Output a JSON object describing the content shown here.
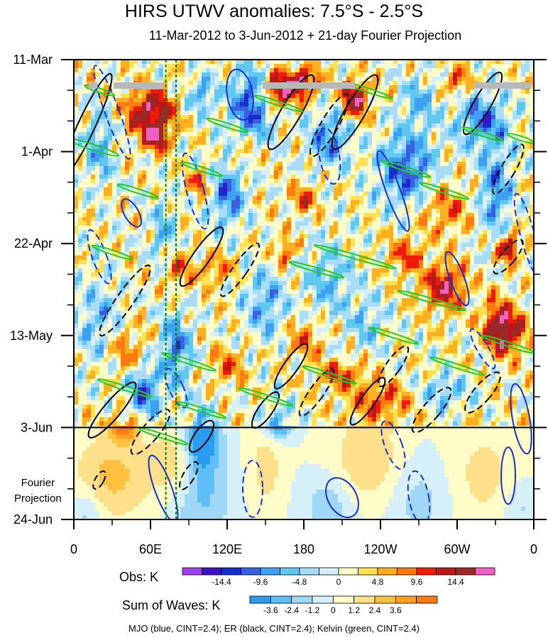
{
  "chart_data": {
    "type": "heatmap",
    "title": "HIRS UTWV anomalies: 7.5°S - 2.5°S",
    "subtitle": "11-Mar-2012 to 3-Jun-2012 + 21-day Fourier Projection",
    "x_tick_labels": [
      "0",
      "60E",
      "120E",
      "180",
      "120W",
      "60W",
      "0"
    ],
    "x_ticks_deg": [
      0,
      60,
      120,
      180,
      240,
      300,
      360
    ],
    "xlim_deg": [
      0,
      360
    ],
    "y_tick_labels": [
      "11-Mar",
      "1-Apr",
      "22-Apr",
      "13-May",
      "3-Jun",
      "24-Jun"
    ],
    "y_ticks_day": [
      0,
      21,
      42,
      63,
      84,
      105
    ],
    "ylim_day": [
      0,
      105
    ],
    "observation_end_day": 84,
    "projection_label": [
      "Fourier",
      "Projection"
    ],
    "reference_lines_deg": [
      72,
      80
    ],
    "obs_colorbar": {
      "title": "Obs: K",
      "tick_labels": [
        "-14.4",
        "-9.6",
        "-4.8",
        "0",
        "4.8",
        "9.6",
        "14.4"
      ],
      "colors": [
        "#9b3ff0",
        "#3a10c8",
        "#1530c8",
        "#3a60e0",
        "#3ea0f0",
        "#5ec8f0",
        "#a8dcf8",
        "#d6f0fa",
        "#fffcc8",
        "#ffe050",
        "#ffb020",
        "#ff7a10",
        "#f01a0a",
        "#b81818",
        "#9a2a2a",
        "#f060c0"
      ]
    },
    "waves_colorbar": {
      "title": "Sum of Waves: K",
      "tick_labels": [
        "-3.6",
        "-2.4",
        "-1.2",
        "0",
        "1.2",
        "2.4",
        "3.6"
      ],
      "colors": [
        "#2a9cf0",
        "#5ebef5",
        "#9ed8f6",
        "#d6f0fa",
        "#fffcc8",
        "#ffe08a",
        "#ffc040",
        "#ffa020",
        "#ff7a10"
      ]
    },
    "caption": "MJO (blue, CINT=2.4); ER (black, CINT=2.4); Kelvin (green, CINT=2.4)",
    "series": [
      {
        "name": "MJO",
        "color": "#1a2fd0",
        "cint": 2.4
      },
      {
        "name": "ER",
        "color": "#000000",
        "cint": 2.4
      },
      {
        "name": "Kelvin",
        "color": "#22cc22",
        "cint": 2.4
      }
    ]
  }
}
